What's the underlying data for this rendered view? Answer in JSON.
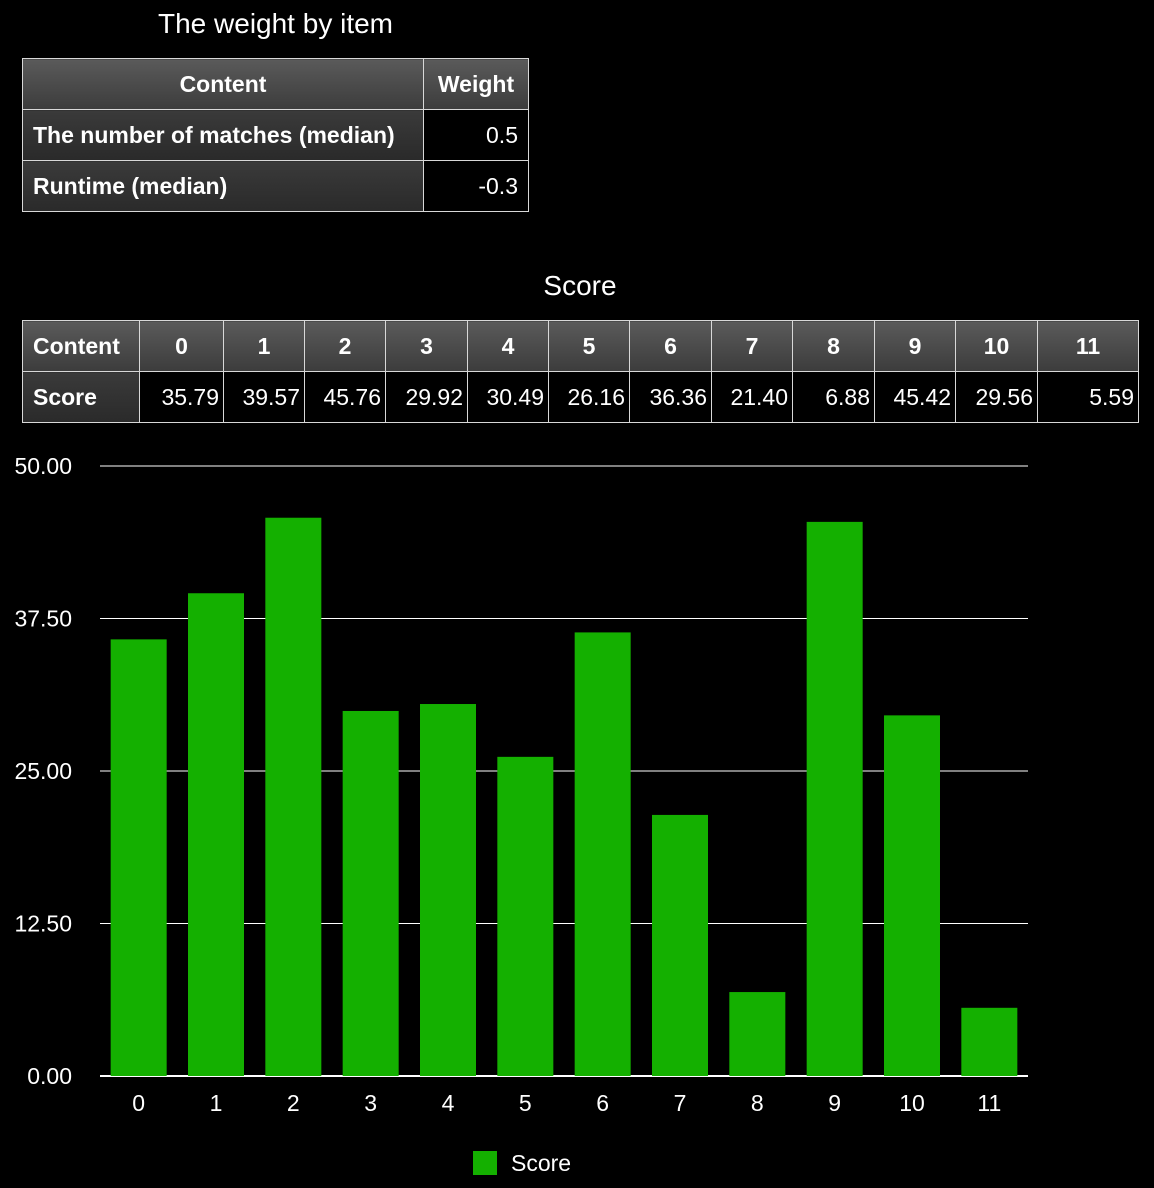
{
  "weight_table": {
    "title": "The weight by item",
    "headers": [
      "Content",
      "Weight"
    ],
    "rows": [
      {
        "label": "The number of matches (median)",
        "value": "0.5"
      },
      {
        "label": "Runtime (median)",
        "value": "-0.3"
      }
    ]
  },
  "score_table": {
    "title": "Score",
    "row_header": "Content",
    "row_label": "Score",
    "columns": [
      "0",
      "1",
      "2",
      "3",
      "4",
      "5",
      "6",
      "7",
      "8",
      "9",
      "10",
      "11"
    ],
    "values": [
      "35.79",
      "39.57",
      "45.76",
      "29.92",
      "30.49",
      "26.16",
      "36.36",
      "21.40",
      "6.88",
      "45.42",
      "29.56",
      "5.59"
    ]
  },
  "chart_data": {
    "type": "bar",
    "categories": [
      "0",
      "1",
      "2",
      "3",
      "4",
      "5",
      "6",
      "7",
      "8",
      "9",
      "10",
      "11"
    ],
    "series": [
      {
        "name": "Score",
        "values": [
          35.79,
          39.57,
          45.76,
          29.92,
          30.49,
          26.16,
          36.36,
          21.4,
          6.88,
          45.42,
          29.56,
          5.59
        ],
        "color": "#14b000"
      }
    ],
    "yticks": [
      "0.00",
      "12.50",
      "25.00",
      "37.50",
      "50.00"
    ],
    "ylim": [
      0,
      50
    ],
    "grid": true,
    "legend": "bottom-center",
    "title": "",
    "xlabel": "",
    "ylabel": ""
  },
  "colors": {
    "background": "#000000",
    "bar": "#14b000",
    "grid": "#ffffff",
    "text": "#ffffff"
  }
}
